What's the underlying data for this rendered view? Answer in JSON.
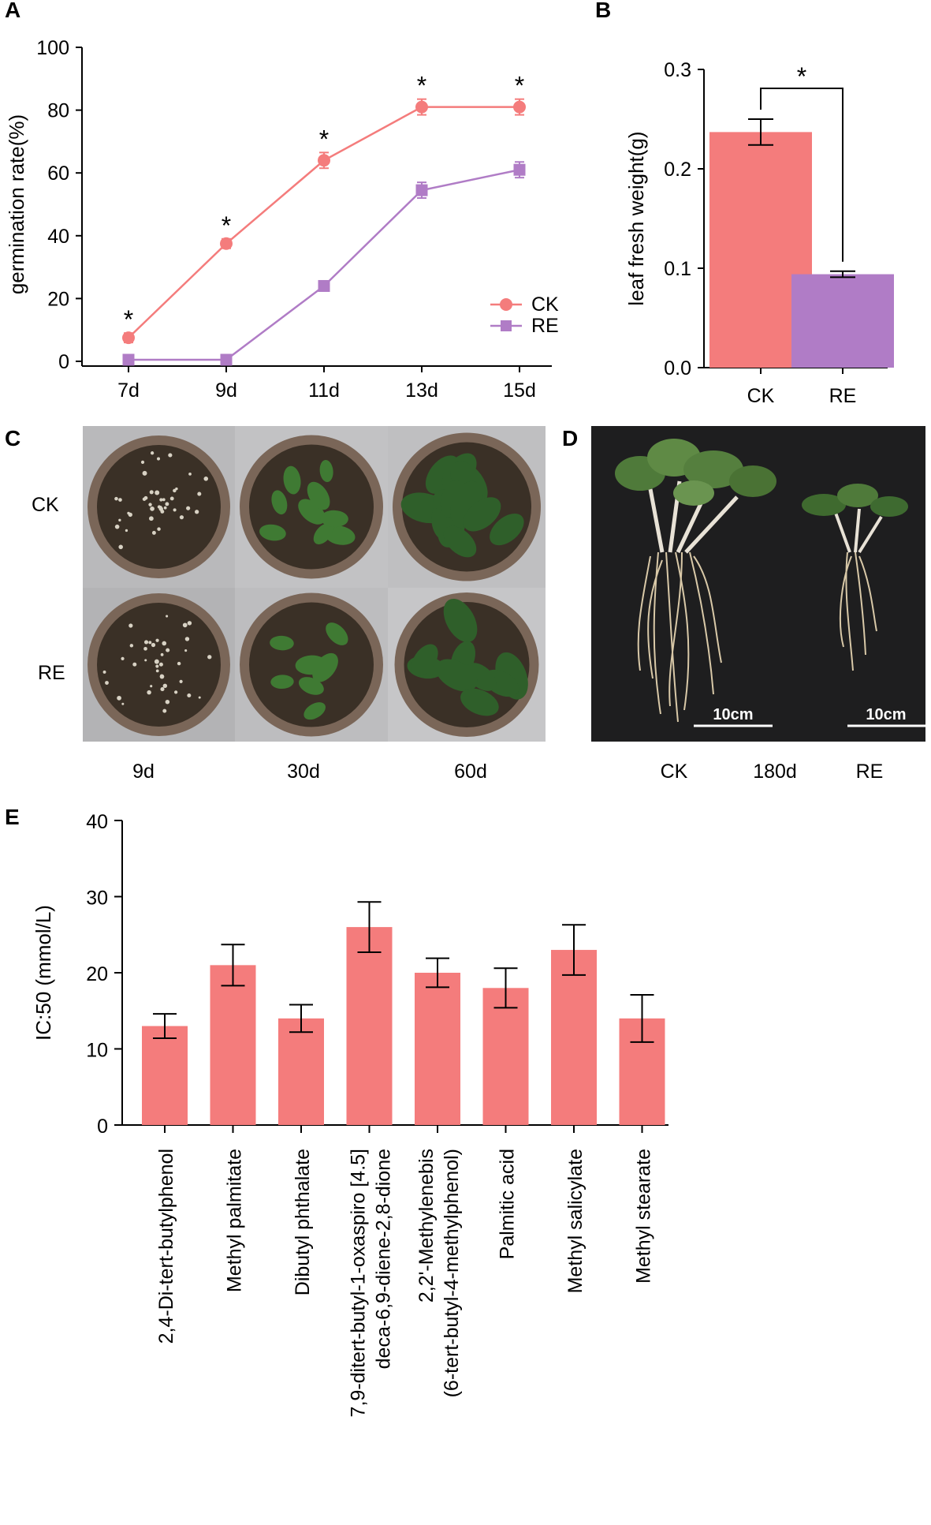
{
  "panels": {
    "A": {
      "letter": "A"
    },
    "B": {
      "letter": "B"
    },
    "C": {
      "letter": "C"
    },
    "D": {
      "letter": "D"
    },
    "E": {
      "letter": "E"
    }
  },
  "colors": {
    "ck": "#f47c7c",
    "re": "#b07cc6",
    "bar_e": "#f47c7c",
    "soil": "#3a3026",
    "pot": "#7a6658"
  },
  "photo_c": {
    "row_labels": [
      "CK",
      "RE"
    ],
    "col_labels": [
      "9d",
      "30d",
      "60d"
    ]
  },
  "photo_d": {
    "labels": [
      "CK",
      "180d",
      "RE"
    ],
    "scale_bar": "10cm"
  },
  "chart_data": [
    {
      "panel": "A",
      "type": "line",
      "categories": [
        "7d",
        "9d",
        "11d",
        "13d",
        "15d"
      ],
      "ylabel": "germination rate(%)",
      "ylim": [
        0,
        100
      ],
      "yticks": [
        0,
        20,
        40,
        60,
        80,
        100
      ],
      "series": [
        {
          "name": "CK",
          "values": [
            7.5,
            37.5,
            64,
            81,
            81
          ],
          "errors": [
            1.5,
            1.5,
            2.5,
            2.5,
            2.5
          ]
        },
        {
          "name": "RE",
          "values": [
            0.5,
            0.5,
            24,
            54.5,
            61
          ],
          "errors": [
            0,
            0,
            1.2,
            2.5,
            2.5
          ]
        }
      ],
      "significance": [
        "*",
        "*",
        "*",
        "*",
        "*"
      ],
      "legend": "right"
    },
    {
      "panel": "B",
      "type": "bar",
      "categories": [
        "CK",
        "RE"
      ],
      "values": [
        0.237,
        0.094
      ],
      "errors": [
        0.013,
        0.003
      ],
      "ylabel": "leaf fresh weight(g)",
      "ylim": [
        0,
        0.3
      ],
      "yticks": [
        "0.0",
        "0.1",
        "0.2",
        "0.3"
      ],
      "significance": "*"
    },
    {
      "panel": "E",
      "type": "bar",
      "categories": [
        [
          "2,4-Di-tert-butylphenol"
        ],
        [
          "Methyl palmitate"
        ],
        [
          "Dibutyl phthalate"
        ],
        [
          "7,9-ditert-butyl-1-oxaspiro [4.5]",
          "deca-6,9-diene-2,8-dione"
        ],
        [
          "2,2'-Methylenebis",
          "(6-tert-butyl-4-methylphenol)"
        ],
        [
          "Palmitic acid"
        ],
        [
          "Methyl salicylate"
        ],
        [
          "Methyl stearate"
        ]
      ],
      "values": [
        13,
        21,
        14,
        26,
        20,
        18,
        23,
        14
      ],
      "errors": [
        1.6,
        2.7,
        1.8,
        3.3,
        1.9,
        2.6,
        3.3,
        3.1
      ],
      "ylabel": "IC:50 (mmol/L)",
      "ylim": [
        0,
        40
      ],
      "yticks": [
        0,
        10,
        20,
        30,
        40
      ]
    }
  ]
}
